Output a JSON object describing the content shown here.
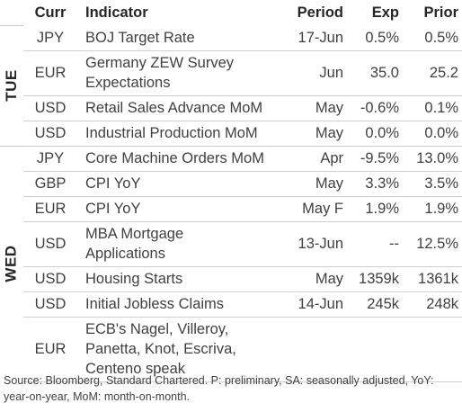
{
  "header": {
    "curr": "Curr",
    "indicator": "Indicator",
    "period": "Period",
    "exp": "Exp",
    "prior": "Prior"
  },
  "days": [
    {
      "label": "TUE",
      "rows": [
        {
          "curr": "JPY",
          "indicator": [
            "BOJ Target Rate"
          ],
          "period": "17-Jun",
          "exp": "0.5%",
          "prior": "0.5%"
        },
        {
          "curr": "EUR",
          "indicator": [
            "Germany ZEW Survey",
            "Expectations"
          ],
          "period": "Jun",
          "exp": "35.0",
          "prior": "25.2"
        },
        {
          "curr": "USD",
          "indicator": [
            "Retail Sales Advance MoM"
          ],
          "period": "May",
          "exp": "-0.6%",
          "prior": "0.1%"
        },
        {
          "curr": "USD",
          "indicator": [
            "Industrial Production MoM"
          ],
          "period": "May",
          "exp": "0.0%",
          "prior": "0.0%"
        }
      ]
    },
    {
      "label": "WED",
      "rows": [
        {
          "curr": "JPY",
          "indicator": [
            "Core Machine Orders MoM"
          ],
          "period": "Apr",
          "exp": "-9.5%",
          "prior": "13.0%"
        },
        {
          "curr": "GBP",
          "indicator": [
            "CPI YoY"
          ],
          "period": "May",
          "exp": "3.3%",
          "prior": "3.5%"
        },
        {
          "curr": "EUR",
          "indicator": [
            "CPI YoY"
          ],
          "period": "May F",
          "exp": "1.9%",
          "prior": "1.9%"
        },
        {
          "curr": "USD",
          "indicator": [
            "MBA Mortgage",
            "Applications"
          ],
          "period": "13-Jun",
          "exp": "--",
          "prior": "12.5%"
        },
        {
          "curr": "USD",
          "indicator": [
            "Housing Starts"
          ],
          "period": "May",
          "exp": "1359k",
          "prior": "1361k"
        },
        {
          "curr": "USD",
          "indicator": [
            "Initial Jobless Claims"
          ],
          "period": "14-Jun",
          "exp": "245k",
          "prior": "248k"
        },
        {
          "curr": "EUR",
          "indicator": [
            "ECB's Nagel, Villeroy,",
            "Panetta, Knot, Escriva,",
            "Centeno speak"
          ],
          "period": "",
          "exp": "",
          "prior": ""
        }
      ]
    }
  ],
  "source": "Source: Bloomberg, Standard Chartered. P: preliminary, SA: seasonally adjusted, YoY: year-on-year, MoM: month-on-month."
}
